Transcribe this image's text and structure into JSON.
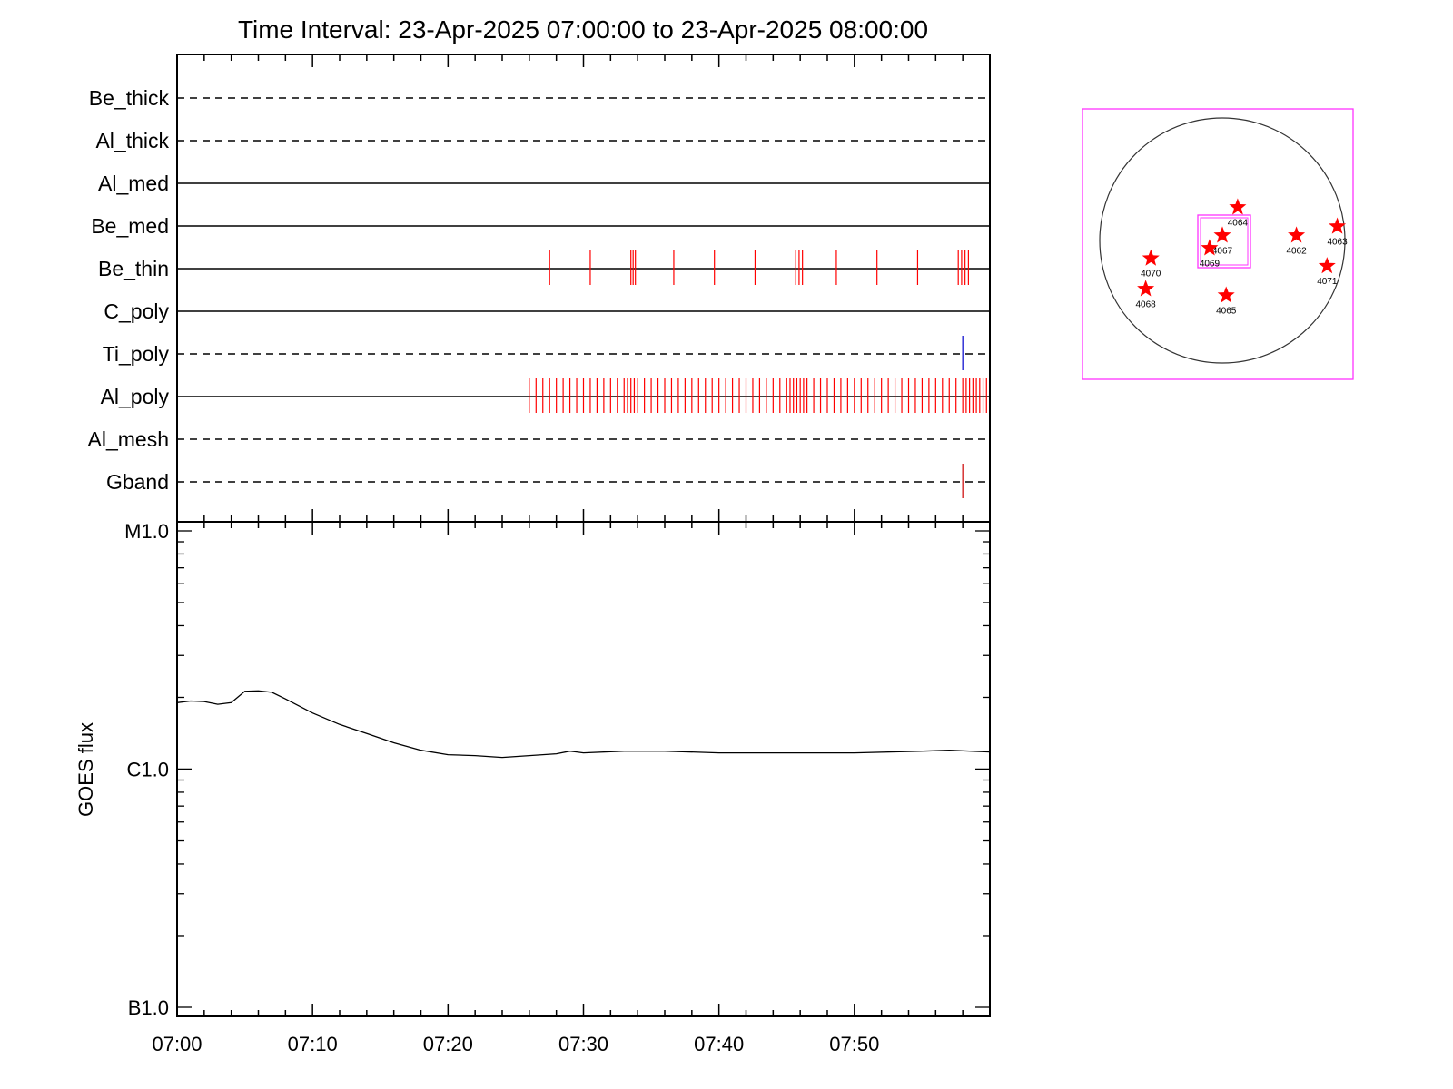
{
  "chart_data": [
    {
      "type": "event-timeline",
      "title": "Time Interval: 23-Apr-2025 07:00:00 to 23-Apr-2025 08:00:00",
      "x_range": [
        "07:00",
        "08:00"
      ],
      "rows": [
        {
          "name": "Be_thick",
          "style": "dashed",
          "events": []
        },
        {
          "name": "Al_thick",
          "style": "dashed",
          "events": []
        },
        {
          "name": "Al_med",
          "style": "solid",
          "events": []
        },
        {
          "name": "Be_med",
          "style": "solid",
          "events": []
        },
        {
          "name": "Be_thin",
          "style": "solid",
          "event_color": "#ff0000",
          "events": [
            "07:27:30",
            "07:30:30",
            "07:33:30",
            "07:33:40",
            "07:33:50",
            "07:36:40",
            "07:39:40",
            "07:42:40",
            "07:45:40",
            "07:45:55",
            "07:46:10",
            "07:48:40",
            "07:51:40",
            "07:54:40",
            "07:57:40",
            "07:57:55",
            "07:58:10",
            "07:58:25"
          ]
        },
        {
          "name": "C_poly",
          "style": "solid",
          "events": []
        },
        {
          "name": "Ti_poly",
          "style": "dashed",
          "event_color": "#0000cc",
          "events": [
            "07:58:00"
          ]
        },
        {
          "name": "Al_poly",
          "style": "solid",
          "event_color": "#ff0000",
          "events": [
            "07:26:00",
            "07:26:30",
            "07:27:00",
            "07:27:30",
            "07:28:00",
            "07:28:30",
            "07:29:00",
            "07:29:30",
            "07:30:00",
            "07:30:30",
            "07:31:00",
            "07:31:30",
            "07:32:00",
            "07:32:30",
            "07:33:00",
            "07:33:15",
            "07:33:30",
            "07:33:45",
            "07:34:00",
            "07:34:30",
            "07:35:00",
            "07:35:30",
            "07:36:00",
            "07:36:30",
            "07:37:00",
            "07:37:30",
            "07:38:00",
            "07:38:30",
            "07:39:00",
            "07:39:30",
            "07:40:00",
            "07:40:30",
            "07:41:00",
            "07:41:30",
            "07:42:00",
            "07:42:30",
            "07:43:00",
            "07:43:30",
            "07:44:00",
            "07:44:30",
            "07:45:00",
            "07:45:15",
            "07:45:30",
            "07:45:45",
            "07:46:00",
            "07:46:15",
            "07:46:30",
            "07:47:00",
            "07:47:30",
            "07:48:00",
            "07:48:30",
            "07:49:00",
            "07:49:30",
            "07:50:00",
            "07:50:30",
            "07:51:00",
            "07:51:30",
            "07:52:00",
            "07:52:30",
            "07:53:00",
            "07:53:30",
            "07:54:00",
            "07:54:30",
            "07:55:00",
            "07:55:30",
            "07:56:00",
            "07:56:30",
            "07:57:00",
            "07:57:30",
            "07:58:00",
            "07:58:15",
            "07:58:30",
            "07:58:45",
            "07:59:00",
            "07:59:15",
            "07:59:30",
            "07:59:45"
          ]
        },
        {
          "name": "Al_mesh",
          "style": "dashed",
          "events": []
        },
        {
          "name": "Gband",
          "style": "dashed",
          "event_color": "#cc0000",
          "events": [
            "07:58:00"
          ]
        }
      ]
    },
    {
      "type": "line",
      "ylabel": "GOES flux",
      "y_scale": "log",
      "ylim": [
        "B1.0",
        "M1.0"
      ],
      "ytick_labels": [
        "M1.0",
        "C1.0",
        "B1.0"
      ],
      "x_range": [
        "07:00",
        "08:00"
      ],
      "xtick_labels": [
        "07:00",
        "07:10",
        "07:20",
        "07:30",
        "07:40",
        "07:50"
      ],
      "series": [
        {
          "color": "#000000",
          "points": [
            [
              "07:00",
              "1.9e-6"
            ],
            [
              "07:01",
              "1.93e-6"
            ],
            [
              "07:02",
              "1.92e-6"
            ],
            [
              "07:03",
              "1.87e-6"
            ],
            [
              "07:04",
              "1.90e-6"
            ],
            [
              "07:05",
              "2.12e-6"
            ],
            [
              "07:06",
              "2.13e-6"
            ],
            [
              "07:07",
              "2.10e-6"
            ],
            [
              "07:08",
              "1.97e-6"
            ],
            [
              "07:10",
              "1.72e-6"
            ],
            [
              "07:12",
              "1.54e-6"
            ],
            [
              "07:14",
              "1.41e-6"
            ],
            [
              "07:16",
              "1.29e-6"
            ],
            [
              "07:18",
              "1.20e-6"
            ],
            [
              "07:20",
              "1.15e-6"
            ],
            [
              "07:22",
              "1.14e-6"
            ],
            [
              "07:24",
              "1.12e-6"
            ],
            [
              "07:26",
              "1.14e-6"
            ],
            [
              "07:28",
              "1.16e-6"
            ],
            [
              "07:29",
              "1.19e-6"
            ],
            [
              "07:30",
              "1.17e-6"
            ],
            [
              "07:33",
              "1.19e-6"
            ],
            [
              "07:36",
              "1.19e-6"
            ],
            [
              "07:40",
              "1.17e-6"
            ],
            [
              "07:45",
              "1.17e-6"
            ],
            [
              "07:50",
              "1.17e-6"
            ],
            [
              "07:55",
              "1.19e-6"
            ],
            [
              "07:57",
              "1.20e-6"
            ],
            [
              "08:00",
              "1.18e-6"
            ]
          ]
        }
      ]
    },
    {
      "type": "solar-disk-map",
      "regions": [
        {
          "label": "4064",
          "x_arcsec": 120,
          "y_arcsec": 260
        },
        {
          "label": "4067",
          "x_arcsec": 0,
          "y_arcsec": 40
        },
        {
          "label": "4069",
          "x_arcsec": -100,
          "y_arcsec": -60
        },
        {
          "label": "4062",
          "x_arcsec": 580,
          "y_arcsec": 40
        },
        {
          "label": "4063",
          "x_arcsec": 900,
          "y_arcsec": 110
        },
        {
          "label": "4071",
          "x_arcsec": 820,
          "y_arcsec": -200
        },
        {
          "label": "4070",
          "x_arcsec": -560,
          "y_arcsec": -140
        },
        {
          "label": "4068",
          "x_arcsec": -600,
          "y_arcsec": -380
        },
        {
          "label": "4065",
          "x_arcsec": 30,
          "y_arcsec": -430
        }
      ],
      "colors": {
        "frame": "#ff33ff",
        "star": "#ff0000"
      }
    }
  ]
}
